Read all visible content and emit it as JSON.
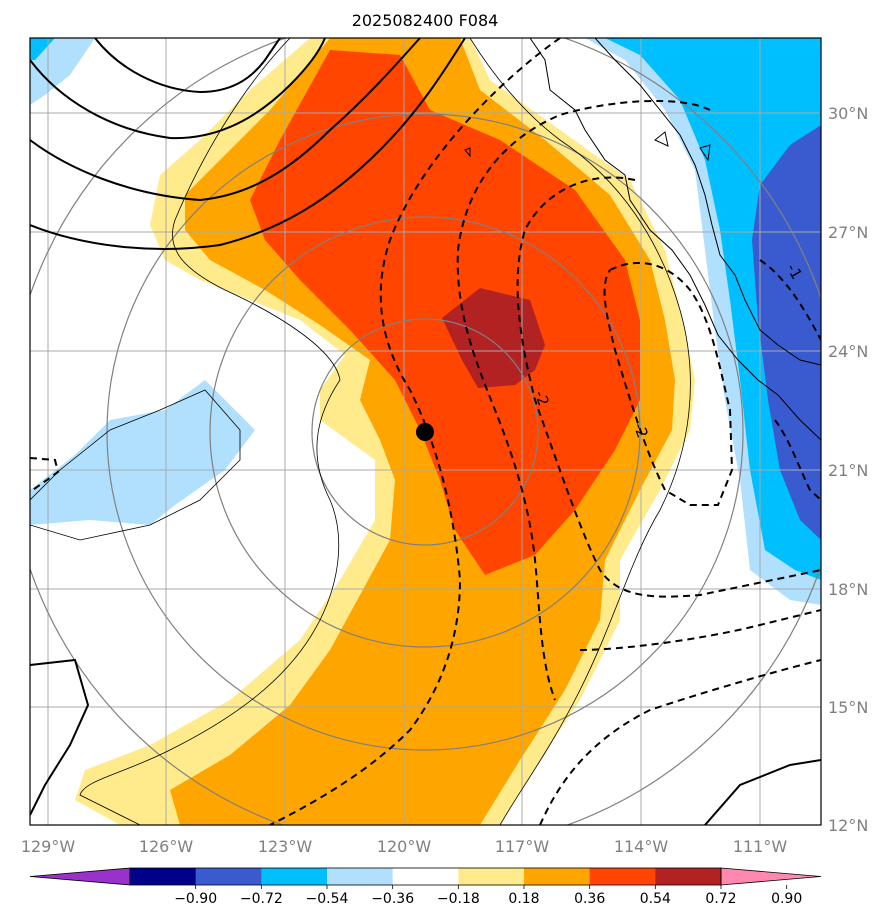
{
  "title": "2025082400 F084",
  "lon_labels": [
    "129°W",
    "126°W",
    "123°W",
    "120°W",
    "117°W",
    "114°W",
    "111°W"
  ],
  "lat_labels": [
    "30°N",
    "27°N",
    "24°N",
    "21°N",
    "18°N",
    "15°N",
    "12°N"
  ],
  "colorbar": {
    "colors": [
      "#9932cc",
      "#00008b",
      "#3a5bd0",
      "#00bfff",
      "#b0e0fe",
      "#ffffff",
      "#ffeb8c",
      "#ffa500",
      "#ff4500",
      "#b22222",
      "#ff88b0"
    ],
    "labels": [
      "−0.90",
      "−0.72",
      "−0.54",
      "−0.36",
      "−0.18",
      "0.18",
      "0.36",
      "0.54",
      "0.72",
      "0.90"
    ]
  },
  "contour_labels": [
    "-2",
    "-2",
    "-1"
  ],
  "marker": "storm-center"
}
